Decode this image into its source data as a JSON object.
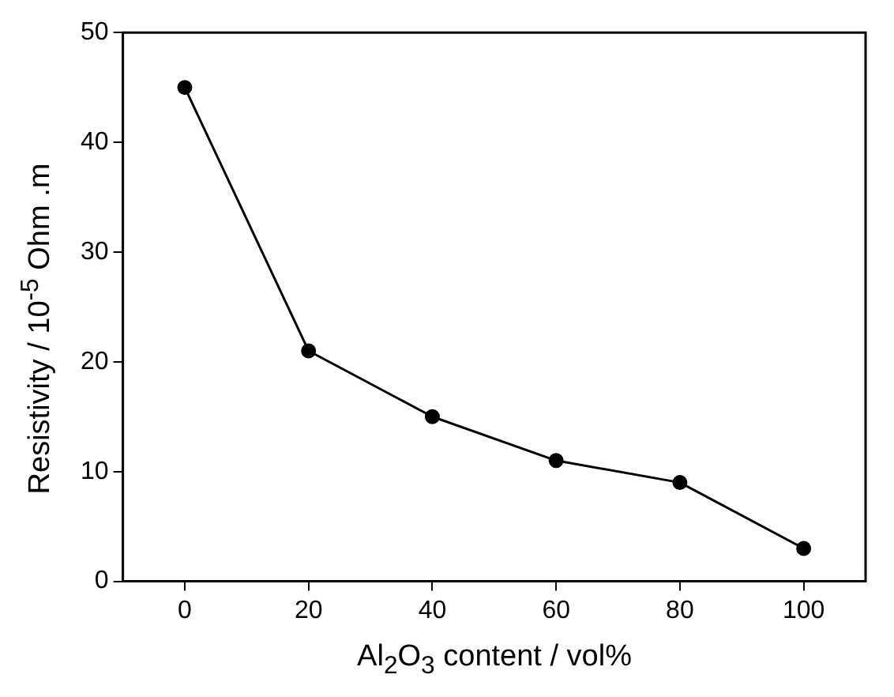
{
  "chart_data": {
    "type": "line",
    "xlabel": "Al$_{2}$O$_{3}$ content / vol%",
    "ylabel": "Resistivity / 10$^{-5}$ Ohm .m",
    "x": [
      0,
      20,
      40,
      60,
      80,
      100
    ],
    "series": [
      {
        "color": "#000000",
        "values": [
          45,
          21,
          15,
          11,
          9,
          3
        ]
      }
    ],
    "xlim": [
      -10,
      110
    ],
    "xticks": [
      0,
      20,
      40,
      60,
      80,
      100
    ],
    "ylim": [
      0,
      50
    ],
    "yticks": [
      0,
      10,
      20,
      30,
      40,
      50
    ],
    "grid": false,
    "legend": false,
    "marker": "circle",
    "line_style": "solid"
  }
}
